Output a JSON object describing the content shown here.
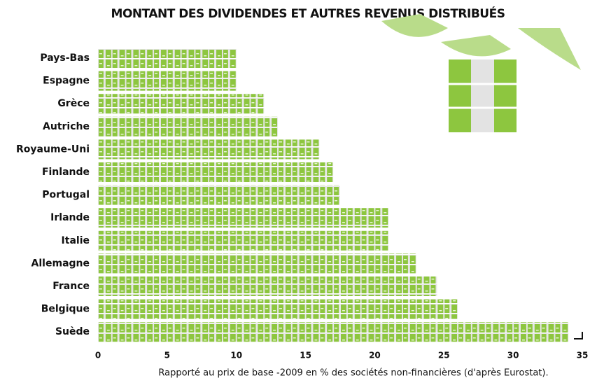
{
  "chart_data": {
    "type": "bar",
    "orientation": "horizontal",
    "title": "MONTANT DES DIVIDENDES ET AUTRES REVENUS DISTRIBUÉS",
    "x_label": "Rapporté au prix de base -2009 en % des sociétés non-financières (d'après Eurostat).",
    "categories": [
      "Pays-Bas",
      "Espagne",
      "Grèce",
      "Autriche",
      "Royaume-Uni",
      "Finlande",
      "Portugal",
      "Irlande",
      "Italie",
      "Allemagne",
      "France",
      "Belgique",
      "Suède"
    ],
    "values": [
      10,
      10,
      12,
      13,
      16,
      17,
      17.5,
      21,
      21,
      23,
      24.5,
      26,
      34
    ],
    "color": "#8dc63f",
    "xlim": [
      0,
      35
    ],
    "xticks": [
      0,
      5,
      10,
      15,
      20,
      25,
      30,
      35
    ]
  }
}
